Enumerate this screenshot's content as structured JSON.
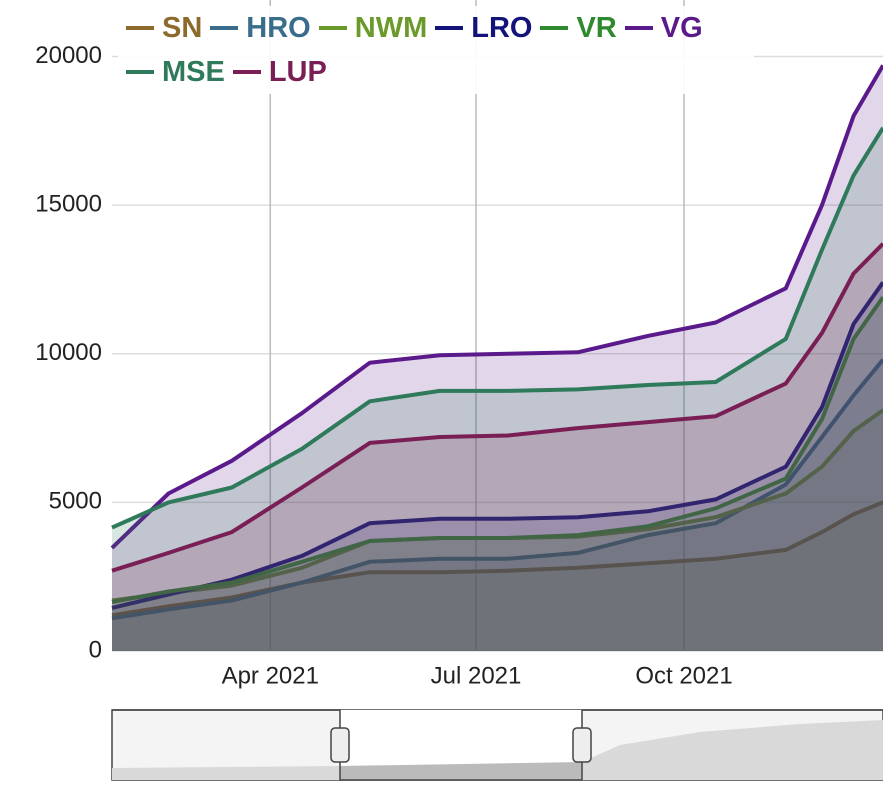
{
  "chart_data": {
    "type": "area",
    "x": [
      "2021-01-21",
      "2021-02-15",
      "2021-03-15",
      "2021-04-15",
      "2021-05-15",
      "2021-06-15",
      "2021-07-15",
      "2021-08-15",
      "2021-09-15",
      "2021-10-15",
      "2021-11-15",
      "2021-12-01",
      "2021-12-15",
      "2021-12-28"
    ],
    "series": [
      {
        "name": "SN",
        "color": "#8b6a2b",
        "values": [
          1200,
          1500,
          1800,
          2300,
          2650,
          2650,
          2700,
          2800,
          2950,
          3100,
          3400,
          4000,
          4600,
          5000
        ]
      },
      {
        "name": "HRO",
        "color": "#3a6d8c",
        "values": [
          1100,
          1400,
          1700,
          2300,
          3000,
          3100,
          3100,
          3300,
          3900,
          4300,
          5600,
          7200,
          8600,
          9800
        ]
      },
      {
        "name": "NWM",
        "color": "#6b9a2a",
        "values": [
          1700,
          1950,
          2200,
          2800,
          3700,
          3800,
          3800,
          3850,
          4100,
          4500,
          5300,
          6200,
          7400,
          8100
        ]
      },
      {
        "name": "LRO",
        "color": "#13137a",
        "values": [
          1450,
          1900,
          2400,
          3200,
          4300,
          4450,
          4450,
          4500,
          4700,
          5100,
          6200,
          8200,
          11000,
          12400
        ]
      },
      {
        "name": "VR",
        "color": "#2f8a2f",
        "values": [
          1650,
          2000,
          2300,
          3000,
          3700,
          3800,
          3800,
          3900,
          4200,
          4800,
          5800,
          7800,
          10500,
          11900
        ]
      },
      {
        "name": "VG",
        "color": "#5b1a8b",
        "values": [
          3470,
          5300,
          6400,
          8000,
          9700,
          9950,
          10000,
          10050,
          10600,
          11050,
          12200,
          15000,
          18000,
          19700
        ]
      },
      {
        "name": "MSE",
        "color": "#2f7a5a",
        "values": [
          4150,
          5000,
          5500,
          6800,
          8400,
          8750,
          8750,
          8800,
          8950,
          9050,
          10500,
          13500,
          16000,
          17600
        ]
      },
      {
        "name": "LUP",
        "color": "#7a1f55",
        "values": [
          2700,
          3300,
          4000,
          5500,
          7000,
          7200,
          7250,
          7500,
          7700,
          7900,
          9000,
          10700,
          12700,
          13700
        ]
      }
    ],
    "xlim": [
      "2021-01-21",
      "2021-12-28"
    ],
    "xticks": [
      {
        "value": "2021-04-01",
        "label": "Apr 2021"
      },
      {
        "value": "2021-07-01",
        "label": "Jul 2021"
      },
      {
        "value": "2021-10-01",
        "label": "Oct 2021"
      }
    ],
    "ylim": [
      0,
      21900
    ],
    "yticks": [
      0,
      5000,
      10000,
      15000,
      20000
    ],
    "grid": true
  }
}
